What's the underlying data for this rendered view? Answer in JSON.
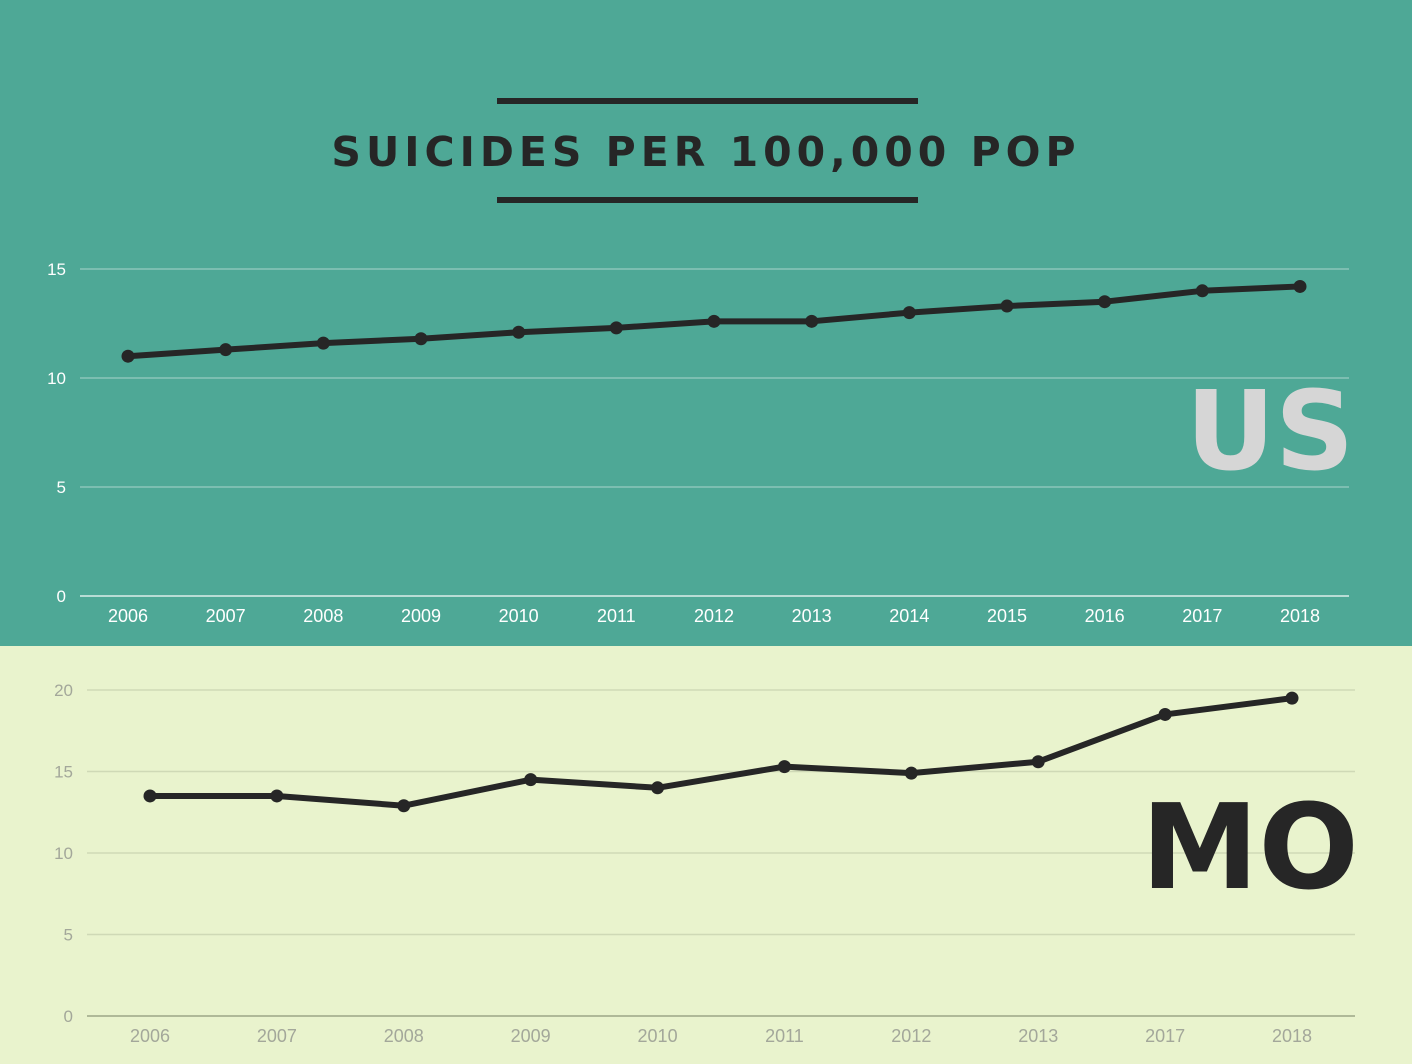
{
  "title": "SUICIDES PER 100,000 POP",
  "colors": {
    "top_bg": "#4ea896",
    "bottom_bg": "#e9f3cd",
    "line": "#262626",
    "us_label": "#d6d6d6",
    "mo_label": "#262626",
    "us_tick": "#ffffff",
    "mo_tick": "#a3a79a"
  },
  "chart_data": [
    {
      "type": "line",
      "label": "US",
      "categories": [
        "2006",
        "2007",
        "2008",
        "2009",
        "2010",
        "2011",
        "2012",
        "2013",
        "2014",
        "2015",
        "2016",
        "2017",
        "2018"
      ],
      "values": [
        11.0,
        11.3,
        11.6,
        11.8,
        12.1,
        12.3,
        12.6,
        12.6,
        13.0,
        13.3,
        13.5,
        14.0,
        14.2
      ],
      "yticks": [
        "0",
        "5",
        "10",
        "15"
      ],
      "ylim": [
        0,
        15
      ],
      "grid": true
    },
    {
      "type": "line",
      "label": "MO",
      "categories": [
        "2006",
        "2007",
        "2008",
        "2009",
        "2010",
        "2011",
        "2012",
        "2013",
        "2017",
        "2018"
      ],
      "values": [
        13.5,
        13.5,
        12.9,
        14.5,
        14.0,
        15.3,
        14.9,
        15.6,
        18.5,
        19.5
      ],
      "yticks": [
        "0",
        "5",
        "10",
        "15",
        "20"
      ],
      "ylim": [
        0,
        20
      ],
      "grid": true
    }
  ]
}
